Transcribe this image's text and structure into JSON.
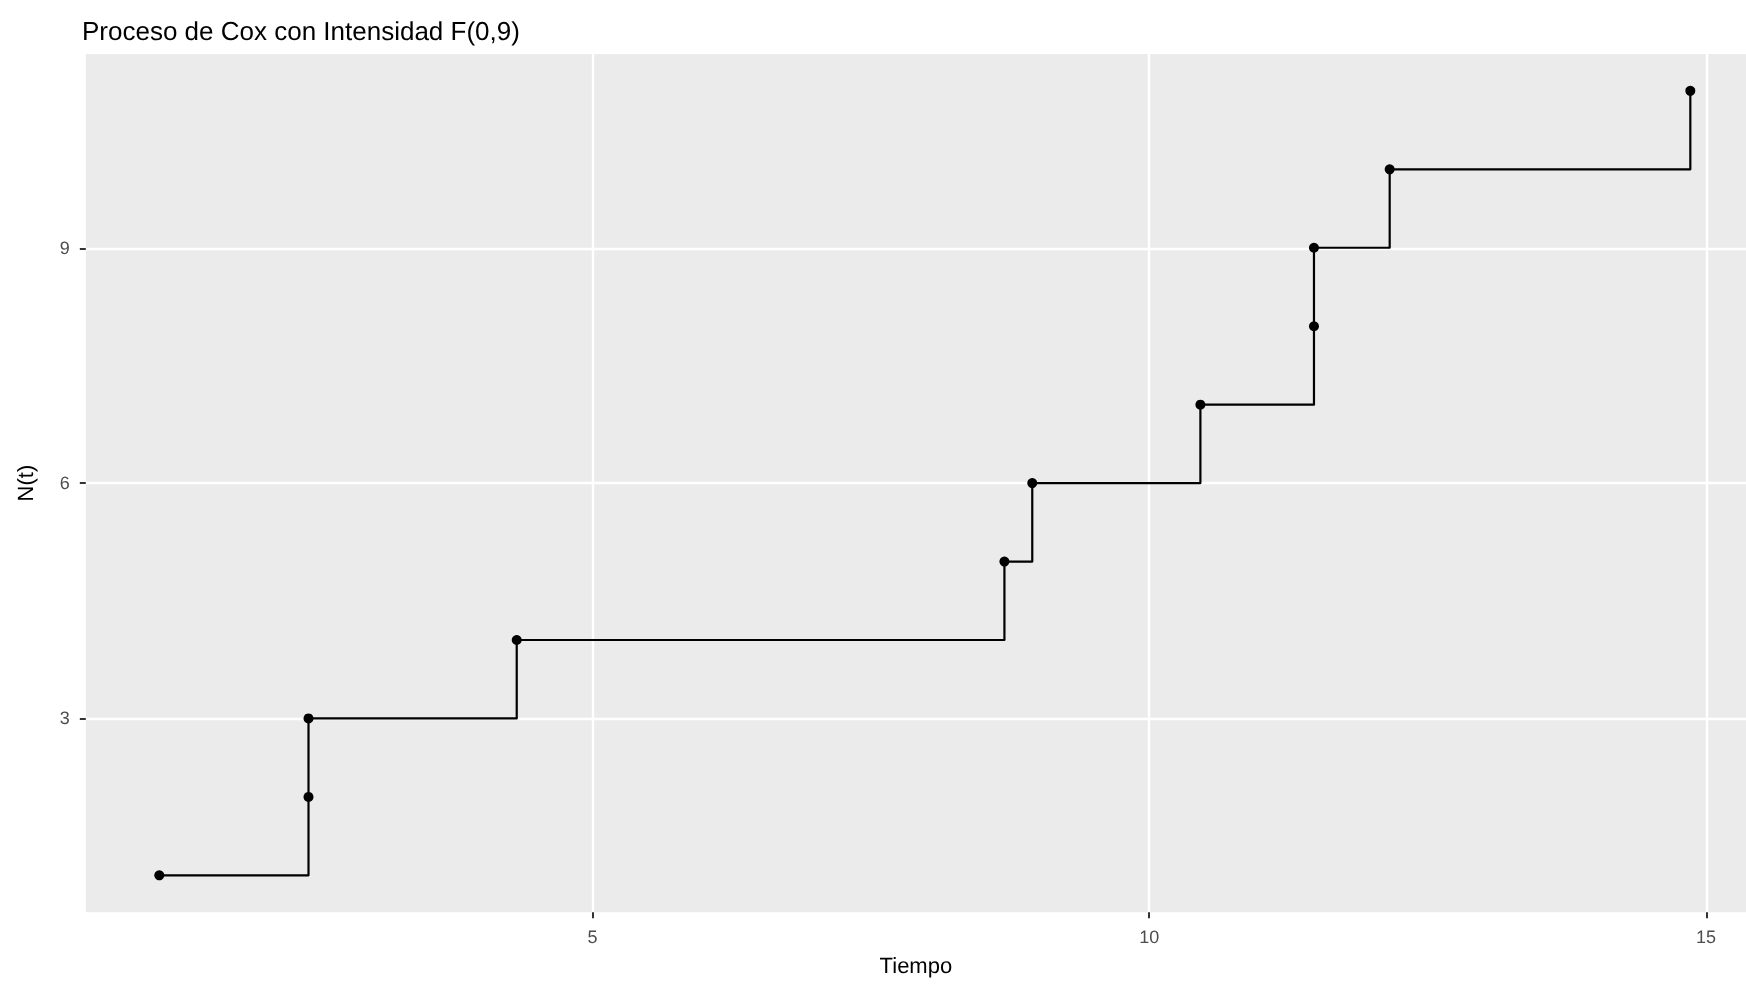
{
  "chart_data": {
    "type": "step",
    "title": "Proceso de Cox con Intensidad F(0,9)",
    "xlabel": "Tiempo",
    "ylabel": "N(t)",
    "x": [
      1.11,
      2.45,
      2.45,
      4.32,
      8.7,
      8.95,
      10.46,
      11.48,
      11.48,
      12.16,
      14.86
    ],
    "series": [
      {
        "color": "#000000",
        "values": [
          1,
          2,
          3,
          4,
          5,
          6,
          7,
          8,
          9,
          10,
          11
        ]
      }
    ],
    "xlim": [
      0.45,
      15.36
    ],
    "xticks": [
      5,
      10,
      15
    ],
    "ylim": [
      0.53,
      11.47
    ],
    "yticks": [
      3,
      6,
      9
    ],
    "grid": true,
    "marker": "circle",
    "line_style": "solid"
  }
}
